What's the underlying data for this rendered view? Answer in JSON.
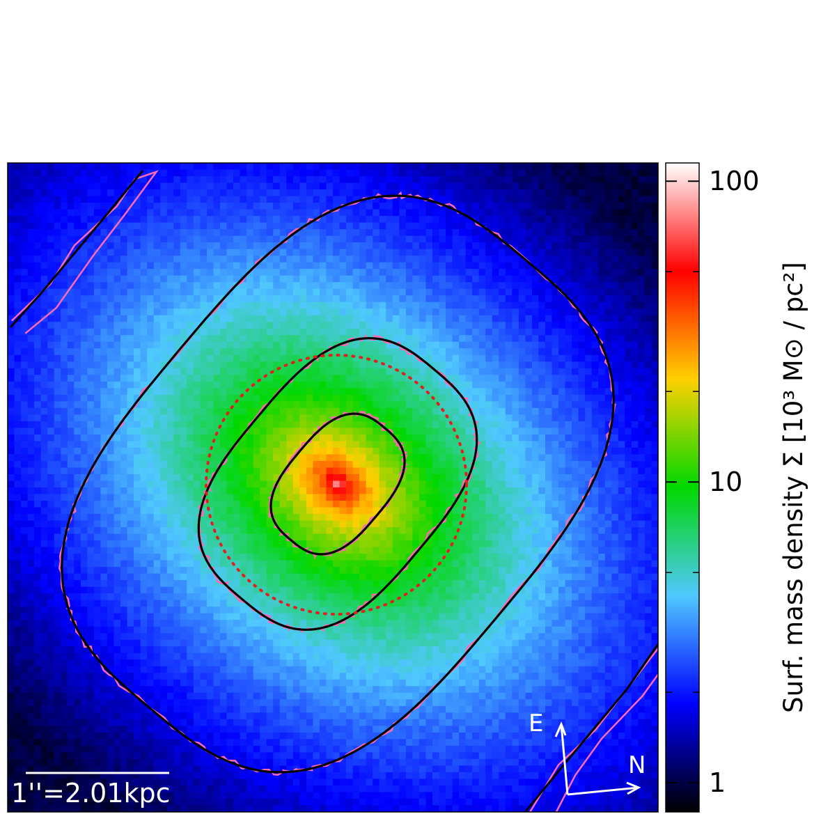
{
  "chart_data": {
    "type": "heatmap",
    "title": "",
    "colorbar": {
      "label": "Surf. mass density Σ [10³ M⊙ / pc²]",
      "scale": "log",
      "range": [
        0.8,
        115
      ],
      "ticks": [
        {
          "value": 1,
          "label": "1"
        },
        {
          "value": 10,
          "label": "10"
        },
        {
          "value": 100,
          "label": "100"
        }
      ],
      "minor_ticks": [
        2,
        5,
        20,
        50
      ],
      "colormap": [
        "#000000",
        "#0000ff",
        "#50c8ff",
        "#00d800",
        "#ffd000",
        "#ff0000",
        "#ffffff"
      ]
    },
    "image": {
      "peak_density": 110,
      "background_density": 1.1,
      "position_angle_deg": 40,
      "axis_ratio": 0.72
    },
    "contours": [
      {
        "style": "solid",
        "color": "#000000",
        "level": 10
      },
      {
        "style": "solid",
        "color": "#000000",
        "level": 4.5
      },
      {
        "style": "dotted",
        "color": "#e02020"
      },
      {
        "style": "solid",
        "color": "#000000",
        "level": 2.5
      }
    ],
    "data_contour_color": "#ff69b4",
    "scale_bar": {
      "label": "1''=2.01kpc"
    },
    "compass": {
      "east_label": "E",
      "north_label": "N"
    },
    "colors": {
      "frame": "#000000",
      "arrows": "#ffffff",
      "text_overlay": "#ffffff"
    }
  }
}
